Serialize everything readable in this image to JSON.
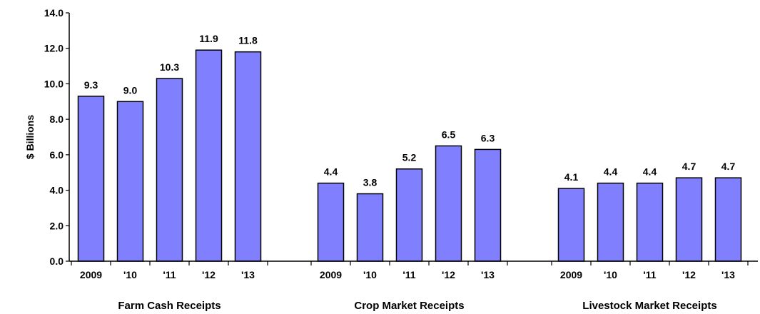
{
  "colors": {
    "bar_fill": "#8080ff",
    "bar_stroke": "#000000",
    "axis": "#000000",
    "background": "#ffffff"
  },
  "chart_data": {
    "type": "bar",
    "title": "",
    "ylabel": "$ Billions",
    "xlabel": "",
    "ylim": [
      0,
      14
    ],
    "yticks": [
      "0.0",
      "2.0",
      "4.0",
      "6.0",
      "8.0",
      "10.0",
      "12.0",
      "14.0"
    ],
    "grid": false,
    "legend": "none",
    "groups": [
      {
        "label": "Farm Cash Receipts",
        "categories": [
          "2009",
          "'10",
          "'11",
          "'12",
          "'13"
        ],
        "values": [
          9.3,
          9.0,
          10.3,
          11.9,
          11.8
        ],
        "value_labels": [
          "9.3",
          "9.0",
          "10.3",
          "11.9",
          "11.8"
        ]
      },
      {
        "label": "Crop Market Receipts",
        "categories": [
          "2009",
          "'10",
          "'11",
          "'12",
          "'13"
        ],
        "values": [
          4.4,
          3.8,
          5.2,
          6.5,
          6.3
        ],
        "value_labels": [
          "4.4",
          "3.8",
          "5.2",
          "6.5",
          "6.3"
        ]
      },
      {
        "label": "Livestock Market Receipts",
        "categories": [
          "2009",
          "'10",
          "'11",
          "'12",
          "'13"
        ],
        "values": [
          4.1,
          4.4,
          4.4,
          4.7,
          4.7
        ],
        "value_labels": [
          "4.1",
          "4.4",
          "4.4",
          "4.7",
          "4.7"
        ]
      }
    ]
  }
}
